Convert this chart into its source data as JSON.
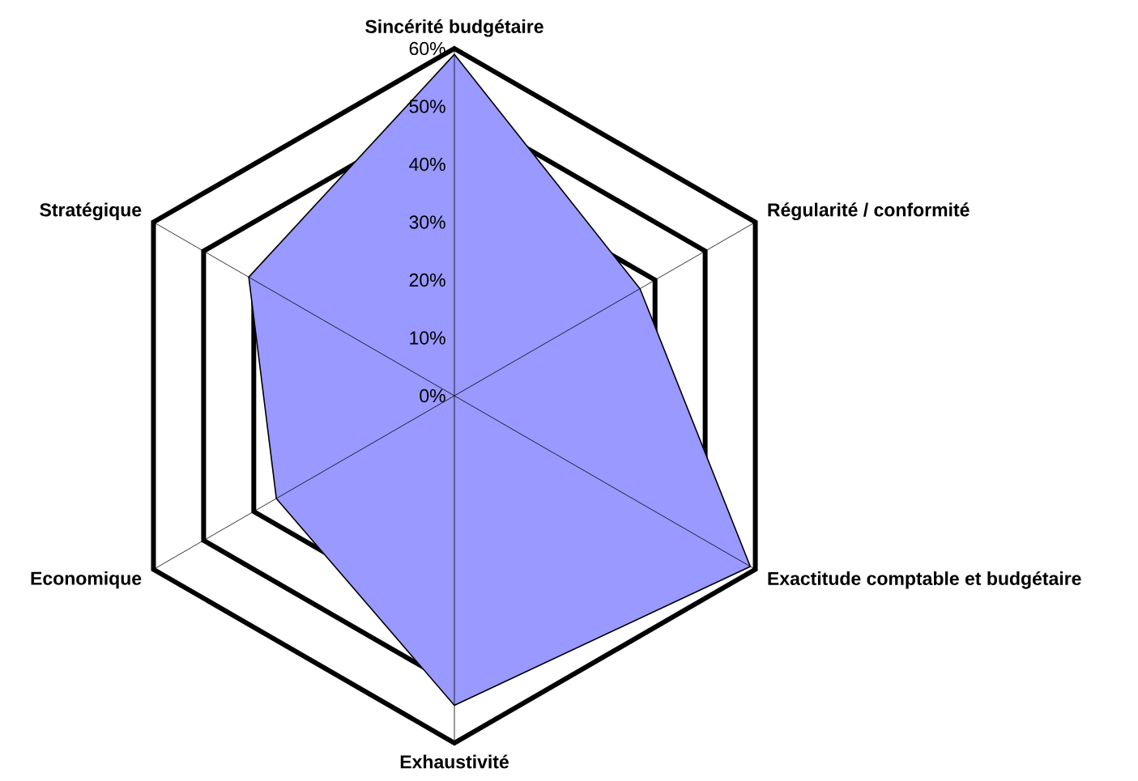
{
  "chart_data": {
    "type": "radar",
    "categories": [
      "Sincérité budgétaire",
      "Régularité / conformité",
      "Exactitude comptable et budgétaire",
      "Exhaustivité",
      "Economique",
      "Stratégique"
    ],
    "series": [
      {
        "color": "#9999ff",
        "values": [
          59,
          37,
          59,
          53.5,
          35.5,
          41
        ]
      }
    ],
    "ylim": [
      0,
      60
    ],
    "yticks": [
      {
        "value": 0,
        "label": "0%"
      },
      {
        "value": 10,
        "label": "10%"
      },
      {
        "value": 20,
        "label": "20%"
      },
      {
        "value": 30,
        "label": "30%"
      },
      {
        "value": 40,
        "label": "40%"
      },
      {
        "value": 50,
        "label": "50%"
      },
      {
        "value": 60,
        "label": "60%"
      }
    ],
    "grid": true
  }
}
